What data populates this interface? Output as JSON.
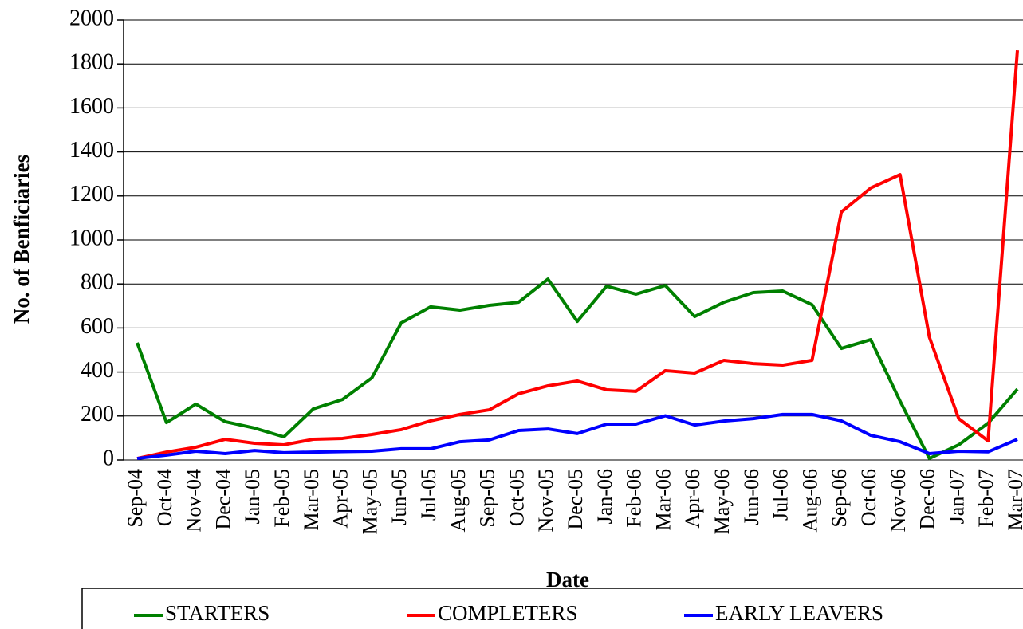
{
  "chart_data": {
    "type": "line",
    "y_label": "No. of Benficiaries",
    "x_label": "Date",
    "categories": [
      "Sep-04",
      "Oct-04",
      "Nov-04",
      "Dec-04",
      "Jan-05",
      "Feb-05",
      "Mar-05",
      "Apr-05",
      "May-05",
      "Jun-05",
      "Jul-05",
      "Aug-05",
      "Sep-05",
      "Oct-05",
      "Nov-05",
      "Dec-05",
      "Jan-06",
      "Feb-06",
      "Mar-06",
      "Apr-06",
      "May-06",
      "Jun-06",
      "Jul-06",
      "Aug-06",
      "Sep-06",
      "Oct-06",
      "Nov-06",
      "Dec-06",
      "Jan-07",
      "Feb-07",
      "Mar-07"
    ],
    "series": [
      {
        "name": "STARTERS",
        "color": "#008000",
        "values": [
          533,
          170,
          254,
          174,
          145,
          105,
          232,
          275,
          373,
          623,
          696,
          681,
          703,
          717,
          822,
          630,
          790,
          754,
          793,
          652,
          717,
          761,
          768,
          706,
          507,
          547,
          268,
          7,
          69,
          167,
          322
        ]
      },
      {
        "name": "COMPLETERS",
        "color": "#ff0000",
        "values": [
          7,
          36,
          58,
          94,
          76,
          69,
          94,
          98,
          116,
          138,
          178,
          207,
          228,
          301,
          337,
          359,
          319,
          312,
          406,
          395,
          453,
          438,
          431,
          453,
          1127,
          1236,
          1297,
          558,
          188,
          87,
          1862
        ]
      },
      {
        "name": "EARLY LEAVERS",
        "color": "#0000ff",
        "values": [
          7,
          22,
          40,
          29,
          43,
          33,
          36,
          38,
          40,
          51,
          51,
          83,
          91,
          134,
          141,
          120,
          163,
          163,
          201,
          159,
          177,
          188,
          207,
          207,
          178,
          112,
          83,
          29,
          40,
          37,
          94
        ]
      }
    ],
    "ylim": [
      0,
      2000
    ],
    "yticks": [
      0,
      200,
      400,
      600,
      800,
      1000,
      1200,
      1400,
      1600,
      1800,
      2000
    ],
    "grid": true,
    "legend": "bottom"
  }
}
